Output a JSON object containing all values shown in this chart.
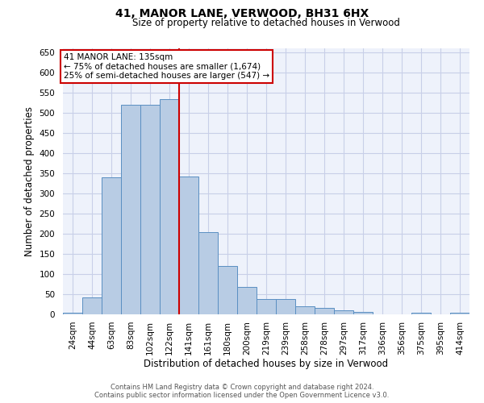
{
  "title1": "41, MANOR LANE, VERWOOD, BH31 6HX",
  "title2": "Size of property relative to detached houses in Verwood",
  "xlabel": "Distribution of detached houses by size in Verwood",
  "ylabel": "Number of detached properties",
  "categories": [
    "24sqm",
    "44sqm",
    "63sqm",
    "83sqm",
    "102sqm",
    "122sqm",
    "141sqm",
    "161sqm",
    "180sqm",
    "200sqm",
    "219sqm",
    "239sqm",
    "258sqm",
    "278sqm",
    "297sqm",
    "317sqm",
    "336sqm",
    "356sqm",
    "375sqm",
    "395sqm",
    "414sqm"
  ],
  "values": [
    5,
    42,
    340,
    520,
    520,
    535,
    343,
    204,
    120,
    68,
    39,
    39,
    20,
    16,
    11,
    7,
    0,
    0,
    5,
    0,
    5
  ],
  "bar_color": "#b8cce4",
  "bar_edge_color": "#5a8fc2",
  "vline_color": "#cc0000",
  "vline_pos": 6.5,
  "annotation_text": "41 MANOR LANE: 135sqm\n← 75% of detached houses are smaller (1,674)\n25% of semi-detached houses are larger (547) →",
  "annotation_box_color": "#ffffff",
  "annotation_box_edge": "#cc0000",
  "ylim": [
    0,
    660
  ],
  "yticks": [
    0,
    50,
    100,
    150,
    200,
    250,
    300,
    350,
    400,
    450,
    500,
    550,
    600,
    650
  ],
  "footer1": "Contains HM Land Registry data © Crown copyright and database right 2024.",
  "footer2": "Contains public sector information licensed under the Open Government Licence v3.0.",
  "bg_color": "#eef2fb",
  "grid_color": "#c8cfe8",
  "title1_fontsize": 10,
  "title2_fontsize": 8.5,
  "ylabel_fontsize": 8.5,
  "xlabel_fontsize": 8.5,
  "tick_fontsize": 7.5,
  "annot_fontsize": 7.5,
  "footer_fontsize": 6
}
